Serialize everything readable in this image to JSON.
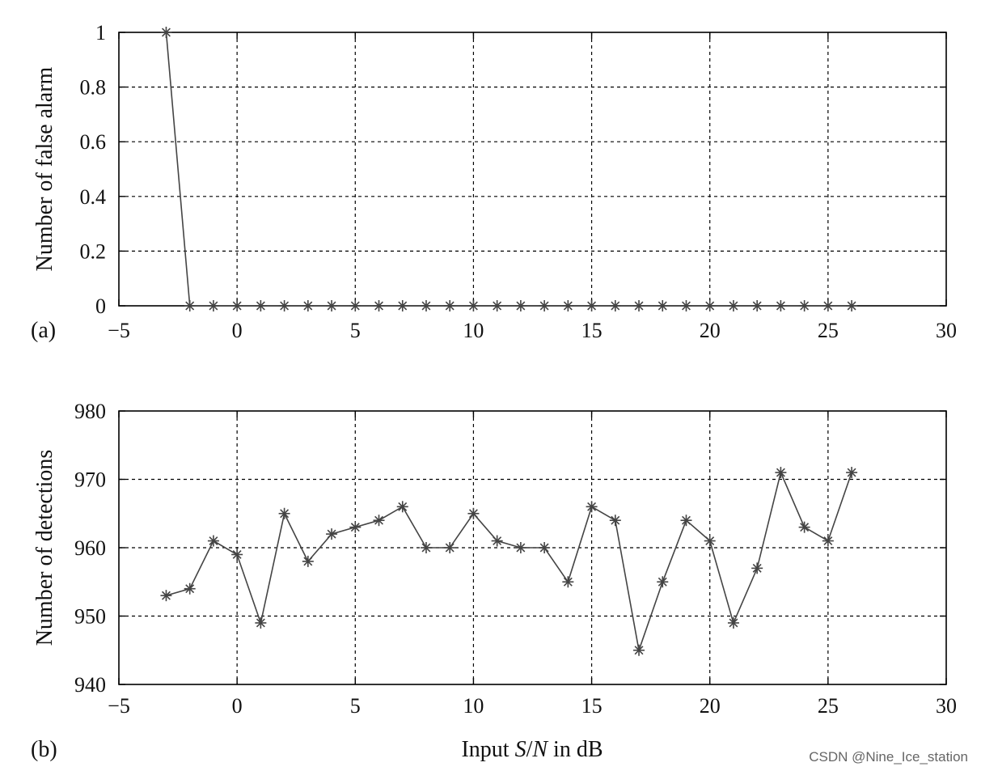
{
  "chart_data": [
    {
      "type": "line",
      "panel_label": "(a)",
      "ylabel": "Number of false alarm",
      "xlabel": "",
      "xlim": [
        -5,
        30
      ],
      "ylim": [
        0,
        1
      ],
      "xticks": [
        "−5",
        "0",
        "5",
        "10",
        "15",
        "20",
        "25",
        "30"
      ],
      "yticks": [
        "0",
        "0.2",
        "0.4",
        "0.6",
        "0.8",
        "1"
      ],
      "grid": true,
      "marker": "asterisk",
      "x": [
        -3,
        -2,
        -1,
        0,
        1,
        2,
        3,
        4,
        5,
        6,
        7,
        8,
        9,
        10,
        11,
        12,
        13,
        14,
        15,
        16,
        17,
        18,
        19,
        20,
        21,
        22,
        23,
        24,
        25,
        26
      ],
      "y": [
        1,
        0,
        0,
        0,
        0,
        0,
        0,
        0,
        0,
        0,
        0,
        0,
        0,
        0,
        0,
        0,
        0,
        0,
        0,
        0,
        0,
        0,
        0,
        0,
        0,
        0,
        0,
        0,
        0,
        0
      ]
    },
    {
      "type": "line",
      "panel_label": "(b)",
      "ylabel": "Number of detections",
      "xlabel": "Input S/N in dB",
      "xlim": [
        -5,
        30
      ],
      "ylim": [
        940,
        980
      ],
      "xticks": [
        "−5",
        "0",
        "5",
        "10",
        "15",
        "20",
        "25",
        "30"
      ],
      "yticks": [
        "940",
        "950",
        "960",
        "970",
        "980"
      ],
      "grid": true,
      "marker": "asterisk",
      "x": [
        -3,
        -2,
        -1,
        0,
        1,
        2,
        3,
        4,
        5,
        6,
        7,
        8,
        9,
        10,
        11,
        12,
        13,
        14,
        15,
        16,
        17,
        18,
        19,
        20,
        21,
        22,
        23,
        24,
        25,
        26
      ],
      "y": [
        953,
        954,
        961,
        959,
        949,
        965,
        958,
        962,
        963,
        964,
        966,
        960,
        960,
        965,
        961,
        960,
        960,
        955,
        966,
        964,
        945,
        955,
        964,
        961,
        949,
        957,
        971,
        963,
        961,
        971
      ]
    }
  ],
  "watermark": "CSDN @Nine_Ice_station",
  "colors": {
    "series": "#444444",
    "grid": "#000000"
  }
}
